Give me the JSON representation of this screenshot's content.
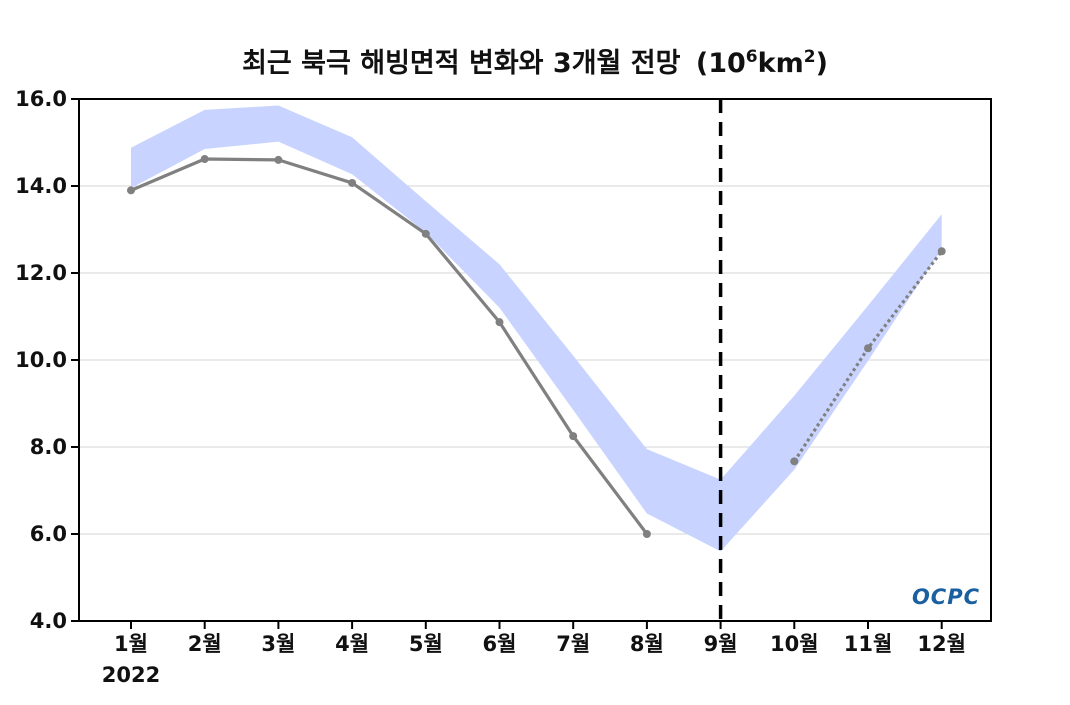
{
  "chart_data": {
    "type": "line",
    "title": "최근 북극 해빙면적 변화와 3개월 전망",
    "title_unit_base": "(10",
    "title_unit_exp": "6",
    "title_unit_mid": "km",
    "title_unit_exp2": "2",
    "title_unit_close": ")",
    "categories": [
      "1월",
      "2월",
      "3월",
      "4월",
      "5월",
      "6월",
      "7월",
      "8월",
      "9월",
      "10월",
      "11월",
      "12월"
    ],
    "year_label": "2022",
    "ylim": [
      4.0,
      16.0
    ],
    "yticks": [
      "4.0",
      "6.0",
      "8.0",
      "10.0",
      "12.0",
      "14.0",
      "16.0"
    ],
    "ytick_values": [
      4.0,
      6.0,
      8.0,
      10.0,
      12.0,
      14.0,
      16.0
    ],
    "grid": true,
    "forecast_start_index": 8,
    "observed": {
      "indices": [
        0,
        1,
        2,
        3,
        4,
        5,
        6,
        7
      ],
      "values": [
        13.9,
        14.62,
        14.6,
        14.07,
        12.9,
        10.87,
        8.25,
        6.0
      ],
      "color": "#808080"
    },
    "forecast": {
      "indices": [
        9,
        10,
        11
      ],
      "values": [
        7.67,
        10.27,
        12.5
      ],
      "color": "#808080"
    },
    "range_band": {
      "indices": [
        0,
        1,
        2,
        3,
        4,
        5,
        6,
        7,
        8,
        9,
        10,
        11
      ],
      "upper": [
        14.88,
        15.75,
        15.85,
        15.12,
        13.65,
        12.2,
        10.1,
        7.95,
        7.25,
        9.18,
        11.25,
        13.35
      ],
      "lower": [
        13.95,
        14.85,
        15.02,
        14.27,
        12.93,
        11.2,
        8.85,
        6.47,
        5.6,
        7.48,
        9.98,
        12.55
      ],
      "color": "#c8d4ff"
    },
    "logo_text": "OCPC"
  }
}
